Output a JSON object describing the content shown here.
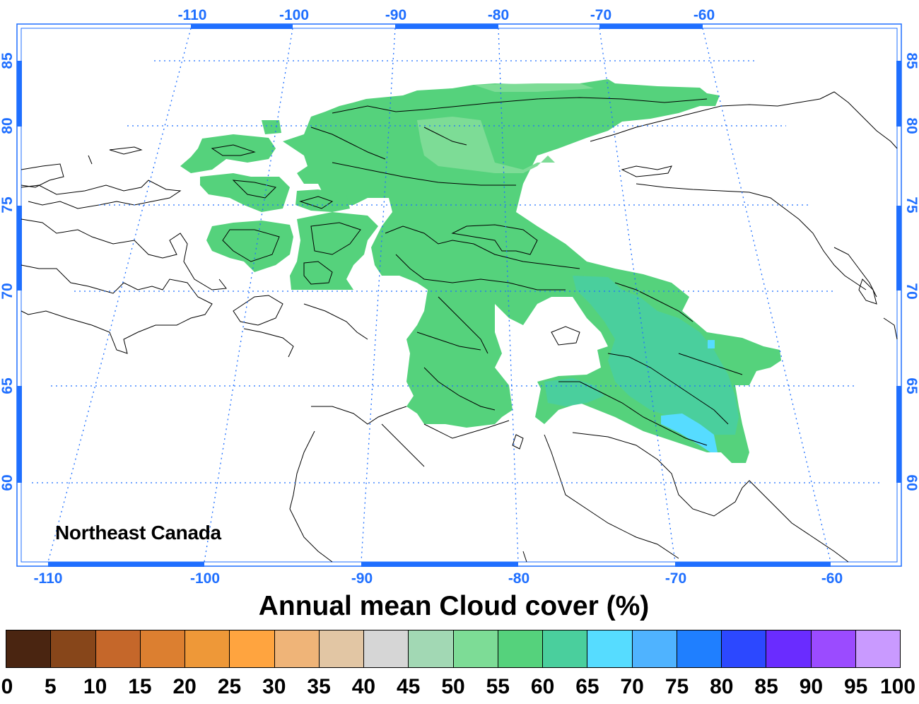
{
  "region_label": "Northeast Canada",
  "title": "Annual mean Cloud cover (%)",
  "map": {
    "projection": "conic",
    "longitude_ticks_top": [
      "-110",
      "-100",
      "-90",
      "-80",
      "-70",
      "-60"
    ],
    "longitude_ticks_bottom": [
      "-110",
      "-100",
      "-90",
      "-80",
      "-70",
      "-60"
    ],
    "latitude_ticks": [
      "85",
      "80",
      "75",
      "70",
      "65",
      "60"
    ],
    "gridline_color": "#1f6fff",
    "coastline_color": "#000000",
    "field_colors": {
      "main": "#55d27c",
      "light": "#7ddc96",
      "teal": "#4acf9d",
      "cyan": "#56dcff"
    }
  },
  "colorbar": {
    "labels": [
      "0",
      "5",
      "10",
      "15",
      "20",
      "25",
      "30",
      "35",
      "40",
      "45",
      "50",
      "55",
      "60",
      "65",
      "70",
      "75",
      "80",
      "85",
      "90",
      "95",
      "100"
    ],
    "colors": [
      "#4a2511",
      "#87461a",
      "#c5672a",
      "#dc7f30",
      "#ee9838",
      "#ffa43f",
      "#efb478",
      "#e2c6a4",
      "#d6d6d6",
      "#a2d8b4",
      "#7ddc96",
      "#55d27c",
      "#4acf9d",
      "#56dcff",
      "#4fb3ff",
      "#1f7fff",
      "#2c48ff",
      "#6a2cff",
      "#9b4bff",
      "#c99aff"
    ]
  }
}
